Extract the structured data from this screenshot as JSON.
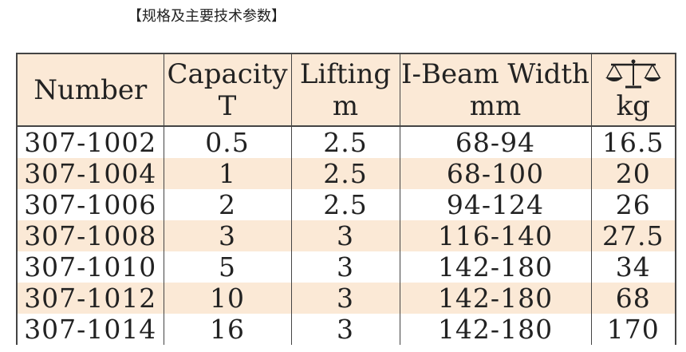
{
  "heading": "【规格及主要技术参数】",
  "table": {
    "headers": [
      {
        "line1": "Number",
        "line2": ""
      },
      {
        "line1": "Capacity",
        "line2": "T"
      },
      {
        "line1": "Lifting",
        "line2": "m"
      },
      {
        "line1": "I-Beam Width",
        "line2": "mm"
      },
      {
        "icon": "balance-scale-icon",
        "line2": "kg"
      }
    ],
    "rows": [
      [
        "307-1002",
        "0.5",
        "2.5",
        "68-94",
        "16.5"
      ],
      [
        "307-1004",
        "1",
        "2.5",
        "68-100",
        "20"
      ],
      [
        "307-1006",
        "2",
        "2.5",
        "94-124",
        "26"
      ],
      [
        "307-1008",
        "3",
        "3",
        "116-140",
        "27.5"
      ],
      [
        "307-1010",
        "5",
        "3",
        "142-180",
        "34"
      ],
      [
        "307-1012",
        "10",
        "3",
        "142-180",
        "68"
      ],
      [
        "307-1014",
        "16",
        "3",
        "142-180",
        "170"
      ]
    ],
    "colors": {
      "shade": "#fbe9d6",
      "border": "#444444"
    }
  }
}
